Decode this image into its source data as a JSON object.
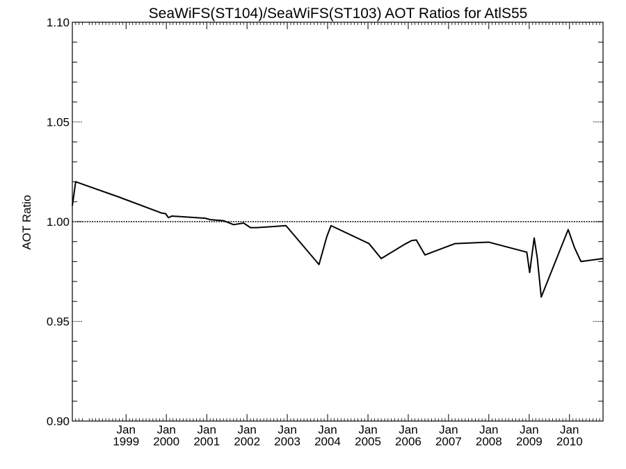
{
  "chart_data": {
    "type": "line",
    "title": "SeaWiFS(ST104)/SeaWiFS(ST103)  AOT Ratios for AtlS55",
    "xlabel": "",
    "ylabel": "AOT Ratio",
    "xlim": [
      "1997-09-01",
      "2010-11-01"
    ],
    "ylim": [
      0.9,
      1.1
    ],
    "y_ticks": [
      {
        "value": 0.9,
        "label": "0.90"
      },
      {
        "value": 0.95,
        "label": "0.95"
      },
      {
        "value": 1.0,
        "label": "1.00"
      },
      {
        "value": 1.05,
        "label": "1.05"
      },
      {
        "value": 1.1,
        "label": "1.10"
      }
    ],
    "x_ticks": [
      {
        "value": "1999-01-01",
        "month": "Jan",
        "year": "1999"
      },
      {
        "value": "2000-01-01",
        "month": "Jan",
        "year": "2000"
      },
      {
        "value": "2001-01-01",
        "month": "Jan",
        "year": "2001"
      },
      {
        "value": "2002-01-01",
        "month": "Jan",
        "year": "2002"
      },
      {
        "value": "2003-01-01",
        "month": "Jan",
        "year": "2003"
      },
      {
        "value": "2004-01-01",
        "month": "Jan",
        "year": "2004"
      },
      {
        "value": "2005-01-01",
        "month": "Jan",
        "year": "2005"
      },
      {
        "value": "2006-01-01",
        "month": "Jan",
        "year": "2006"
      },
      {
        "value": "2007-01-01",
        "month": "Jan",
        "year": "2007"
      },
      {
        "value": "2008-01-01",
        "month": "Jan",
        "year": "2008"
      },
      {
        "value": "2009-01-01",
        "month": "Jan",
        "year": "2009"
      },
      {
        "value": "2010-01-01",
        "month": "Jan",
        "year": "2010"
      }
    ],
    "reference_line": {
      "y": 1.0,
      "style": "dotted"
    },
    "series": [
      {
        "color": "#000000",
        "points": [
          {
            "x": "1997-09-01",
            "y": 1.008
          },
          {
            "x": "1997-10-01",
            "y": 1.02
          },
          {
            "x": "1998-10-20",
            "y": 1.0125
          },
          {
            "x": "1999-11-20",
            "y": 1.0043
          },
          {
            "x": "1999-12-25",
            "y": 1.004
          },
          {
            "x": "2000-01-20",
            "y": 1.002
          },
          {
            "x": "2000-02-20",
            "y": 1.0028
          },
          {
            "x": "2000-12-20",
            "y": 1.0017
          },
          {
            "x": "2001-02-01",
            "y": 1.001
          },
          {
            "x": "2001-06-01",
            "y": 1.0005
          },
          {
            "x": "2001-09-01",
            "y": 0.9985
          },
          {
            "x": "2001-12-01",
            "y": 0.9993
          },
          {
            "x": "2002-02-01",
            "y": 0.997
          },
          {
            "x": "2002-04-01",
            "y": 0.997
          },
          {
            "x": "2002-12-20",
            "y": 0.998
          },
          {
            "x": "2003-10-15",
            "y": 0.9785
          },
          {
            "x": "2003-12-25",
            "y": 0.9925
          },
          {
            "x": "2004-02-01",
            "y": 0.998
          },
          {
            "x": "2005-01-10",
            "y": 0.989
          },
          {
            "x": "2005-05-01",
            "y": 0.9815
          },
          {
            "x": "2005-12-01",
            "y": 0.9887
          },
          {
            "x": "2006-02-01",
            "y": 0.9905
          },
          {
            "x": "2006-03-15",
            "y": 0.9908
          },
          {
            "x": "2006-06-01",
            "y": 0.9833
          },
          {
            "x": "2007-03-01",
            "y": 0.989
          },
          {
            "x": "2008-01-01",
            "y": 0.9897
          },
          {
            "x": "2008-12-10",
            "y": 0.9847
          },
          {
            "x": "2009-01-05",
            "y": 0.9745
          },
          {
            "x": "2009-02-15",
            "y": 0.9918
          },
          {
            "x": "2009-03-15",
            "y": 0.9818
          },
          {
            "x": "2009-04-20",
            "y": 0.9622
          },
          {
            "x": "2009-12-20",
            "y": 0.996
          },
          {
            "x": "2010-02-15",
            "y": 0.987
          },
          {
            "x": "2010-04-15",
            "y": 0.98
          },
          {
            "x": "2010-11-01",
            "y": 0.9815
          }
        ]
      }
    ]
  }
}
